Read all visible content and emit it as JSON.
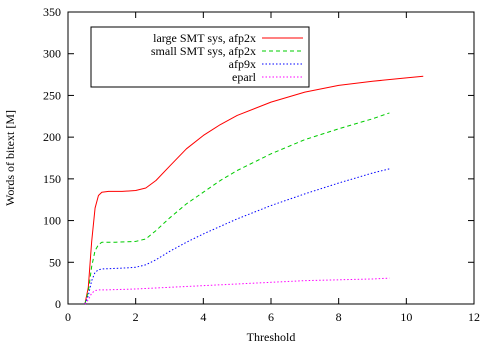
{
  "chart_data": {
    "type": "line",
    "title": "",
    "xlabel": "Threshold",
    "ylabel": "Words of bitext [M]",
    "xlim": [
      0,
      12
    ],
    "ylim": [
      0,
      350
    ],
    "xticks": [
      0,
      2,
      4,
      6,
      8,
      10,
      12
    ],
    "yticks": [
      0,
      50,
      100,
      150,
      200,
      250,
      300,
      350
    ],
    "grid": false,
    "legend_position": "top-left",
    "series": [
      {
        "name": "large SMT sys, afp2x",
        "color": "#ff0000",
        "dash": "solid",
        "points": [
          [
            0.5,
            0
          ],
          [
            0.6,
            20
          ],
          [
            0.7,
            75
          ],
          [
            0.8,
            115
          ],
          [
            0.9,
            130
          ],
          [
            1.0,
            134
          ],
          [
            1.2,
            135
          ],
          [
            1.6,
            135
          ],
          [
            2.0,
            136
          ],
          [
            2.3,
            139
          ],
          [
            2.6,
            148
          ],
          [
            3.0,
            165
          ],
          [
            3.5,
            186
          ],
          [
            4.0,
            202
          ],
          [
            4.5,
            215
          ],
          [
            5.0,
            226
          ],
          [
            6.0,
            242
          ],
          [
            7.0,
            254
          ],
          [
            8.0,
            262
          ],
          [
            9.0,
            267
          ],
          [
            10.0,
            271
          ],
          [
            10.5,
            273
          ]
        ]
      },
      {
        "name": "small SMT sys, afp2x",
        "color": "#00cc00",
        "dash": "dashed",
        "points": [
          [
            0.5,
            0
          ],
          [
            0.6,
            15
          ],
          [
            0.7,
            45
          ],
          [
            0.8,
            64
          ],
          [
            0.9,
            71
          ],
          [
            1.0,
            74
          ],
          [
            1.4,
            74
          ],
          [
            2.0,
            75
          ],
          [
            2.3,
            78
          ],
          [
            2.6,
            88
          ],
          [
            3.0,
            103
          ],
          [
            3.5,
            120
          ],
          [
            4.0,
            134
          ],
          [
            4.5,
            148
          ],
          [
            5.0,
            160
          ],
          [
            6.0,
            180
          ],
          [
            7.0,
            197
          ],
          [
            8.0,
            210
          ],
          [
            9.0,
            222
          ],
          [
            9.5,
            229
          ]
        ]
      },
      {
        "name": "afp9x",
        "color": "#0000ff",
        "dash": "dotted",
        "points": [
          [
            0.5,
            0
          ],
          [
            0.6,
            10
          ],
          [
            0.7,
            28
          ],
          [
            0.8,
            38
          ],
          [
            0.9,
            41
          ],
          [
            1.0,
            42
          ],
          [
            1.6,
            43
          ],
          [
            2.0,
            44
          ],
          [
            2.3,
            47
          ],
          [
            2.6,
            53
          ],
          [
            3.0,
            63
          ],
          [
            3.5,
            74
          ],
          [
            4.0,
            84
          ],
          [
            4.5,
            93
          ],
          [
            5.0,
            102
          ],
          [
            6.0,
            118
          ],
          [
            7.0,
            132
          ],
          [
            8.0,
            145
          ],
          [
            9.0,
            157
          ],
          [
            9.5,
            162
          ]
        ]
      },
      {
        "name": "eparl",
        "color": "#ff00ff",
        "dash": "dotted",
        "points": [
          [
            0.5,
            0
          ],
          [
            0.6,
            5
          ],
          [
            0.7,
            13
          ],
          [
            0.8,
            16
          ],
          [
            0.9,
            17
          ],
          [
            1.2,
            17
          ],
          [
            2.0,
            18
          ],
          [
            3.0,
            20
          ],
          [
            4.0,
            22
          ],
          [
            5.0,
            24
          ],
          [
            6.0,
            26
          ],
          [
            7.0,
            28
          ],
          [
            8.0,
            29
          ],
          [
            9.0,
            30
          ],
          [
            9.5,
            31
          ]
        ]
      }
    ]
  }
}
